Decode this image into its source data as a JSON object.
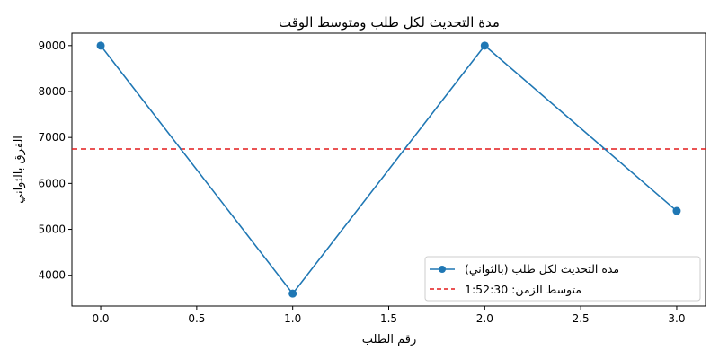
{
  "chart_data": {
    "type": "line",
    "title": "مدة التحديث لكل طلب ومتوسط الوقت",
    "xlabel": "رقم الطلب",
    "ylabel": "الفرق بالثواني",
    "x": [
      0,
      1,
      2,
      3
    ],
    "xlim": [
      -0.15,
      3.15
    ],
    "ylim": [
      3330,
      9270
    ],
    "xticks": [
      0.0,
      0.5,
      1.0,
      1.5,
      2.0,
      2.5,
      3.0
    ],
    "xtick_labels": [
      "0.0",
      "0.5",
      "1.0",
      "1.5",
      "2.0",
      "2.5",
      "3.0"
    ],
    "yticks": [
      4000,
      5000,
      6000,
      7000,
      8000,
      9000
    ],
    "ytick_labels": [
      "4000",
      "5000",
      "6000",
      "7000",
      "8000",
      "9000"
    ],
    "grid": false,
    "legend_position": "lower-right",
    "series": [
      {
        "name": "مدة التحديث لكل طلب (بالثواني)",
        "values": [
          9000,
          3600,
          9000,
          5400
        ],
        "color": "#1f77b4",
        "style": "solid",
        "marker": "circle"
      }
    ],
    "reference_lines": [
      {
        "name": "متوسط الزمن: 1:52:30",
        "y": 6750,
        "color": "#e41a1c",
        "style": "dashed"
      }
    ]
  }
}
